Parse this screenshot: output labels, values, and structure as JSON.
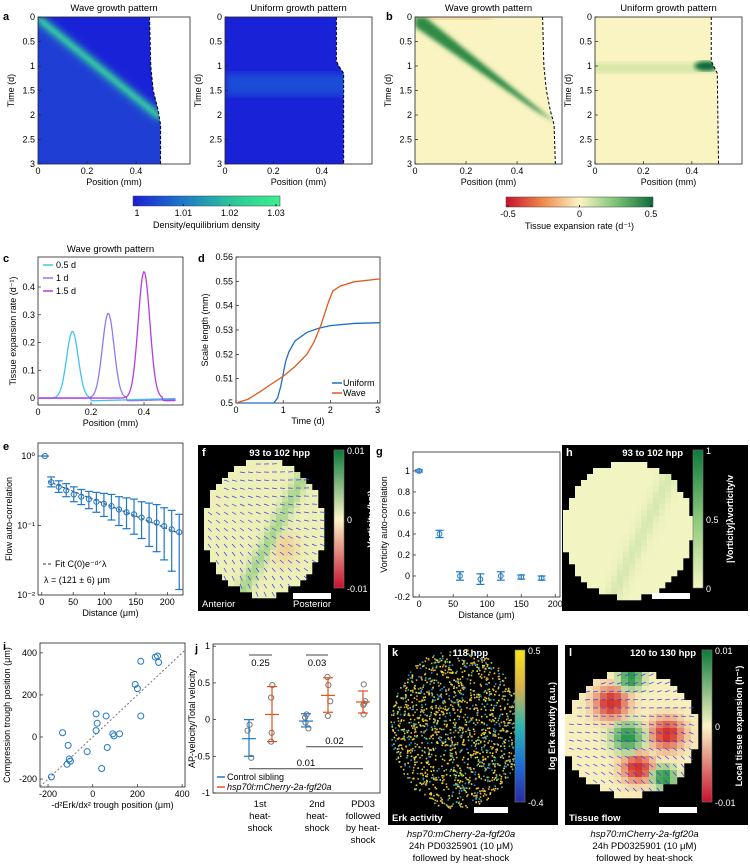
{
  "figure": {
    "panel_labels": [
      "a",
      "b",
      "c",
      "d",
      "e",
      "f",
      "g",
      "h",
      "i",
      "j",
      "k",
      "l"
    ]
  },
  "chart_data": [
    {
      "panel": "a",
      "type": "heatmap",
      "xlabel": "Position (mm)",
      "ylabel": "Time (d)",
      "xticks": [
        {
          "v": 0,
          "label": "0"
        },
        {
          "v": 0.2,
          "label": "0.2"
        },
        {
          "v": 0.4,
          "label": "0.4"
        }
      ],
      "yticks": [
        {
          "v": 0,
          "label": "0"
        },
        {
          "v": 0.5,
          "label": "0.5"
        },
        {
          "v": 1,
          "label": "1"
        },
        {
          "v": 1.5,
          "label": "1.5"
        },
        {
          "v": 2,
          "label": "2"
        },
        {
          "v": 2.5,
          "label": "2.5"
        },
        {
          "v": 3,
          "label": "3"
        }
      ],
      "subplots": [
        {
          "title": "Wave growth pattern",
          "pattern": "wave",
          "boundary": {
            "time": [
              0,
              1,
              1.5,
              1.9,
              2.2,
              3
            ],
            "position": [
              0.455,
              0.46,
              0.47,
              0.49,
              0.5,
              0.5
            ]
          }
        },
        {
          "title": "Uniform growth pattern",
          "pattern": "uniform",
          "boundary": {
            "time": [
              0,
              0.9,
              1,
              1.15,
              3
            ],
            "position": [
              0.46,
              0.46,
              0.47,
              0.49,
              0.49
            ]
          }
        }
      ],
      "colorbar": {
        "label": "Density/equilibrium density",
        "range": [
          1,
          1.03
        ],
        "ticks": [
          {
            "v": 1,
            "label": "1"
          },
          {
            "v": 1.01,
            "label": "1.01"
          },
          {
            "v": 1.02,
            "label": "1.02"
          },
          {
            "v": 1.03,
            "label": "1.03"
          }
        ],
        "colors": [
          "#1a1fd6",
          "#1d78c8",
          "#2cc59a",
          "#3df08c"
        ]
      }
    },
    {
      "panel": "b",
      "type": "heatmap",
      "xlabel": "Position (mm)",
      "ylabel": "Time (d)",
      "xticks": [
        {
          "v": 0,
          "label": "0"
        },
        {
          "v": 0.2,
          "label": "0.2"
        },
        {
          "v": 0.4,
          "label": "0.4"
        }
      ],
      "yticks": [
        {
          "v": 0,
          "label": "0"
        },
        {
          "v": 0.5,
          "label": "0.5"
        },
        {
          "v": 1,
          "label": "1"
        },
        {
          "v": 1.5,
          "label": "1.5"
        },
        {
          "v": 2,
          "label": "2"
        },
        {
          "v": 2.5,
          "label": "2.5"
        },
        {
          "v": 3,
          "label": "3"
        }
      ],
      "subplots": [
        {
          "title": "Wave growth pattern",
          "pattern": "wave",
          "boundary": {
            "time": [
              0,
              1,
              1.5,
              1.9,
              2.2,
              3
            ],
            "position": [
              0.5,
              0.505,
              0.515,
              0.53,
              0.545,
              0.55
            ]
          }
        },
        {
          "title": "Uniform growth pattern",
          "pattern": "uniform",
          "boundary": {
            "time": [
              0,
              0.9,
              1,
              1.15,
              3
            ],
            "position": [
              0.48,
              0.48,
              0.49,
              0.505,
              0.51
            ]
          }
        }
      ],
      "colorbar": {
        "label": "Tissue expansion rate (d⁻¹)",
        "range": [
          -0.5,
          0.5
        ],
        "ticks": [
          {
            "v": -0.5,
            "label": "-0.5"
          },
          {
            "v": 0,
            "label": "0"
          },
          {
            "v": 0.5,
            "label": "0.5"
          }
        ],
        "colors": [
          "#c8102e",
          "#f08a4b",
          "#fbf6c4",
          "#7cc276",
          "#0b6b3a"
        ]
      }
    },
    {
      "panel": "c",
      "type": "line",
      "title": "Wave growth pattern",
      "xlabel": "Position (mm)",
      "ylabel": "Tissue expansion rate (d⁻¹)",
      "xlim": [
        0,
        0.547
      ],
      "ylim": [
        -0.025,
        0.508
      ],
      "xticks": [
        {
          "v": 0,
          "label": "0"
        },
        {
          "v": 0.2,
          "label": "0.2"
        },
        {
          "v": 0.4,
          "label": "0.4"
        }
      ],
      "yticks": [
        {
          "v": 0,
          "label": "0"
        },
        {
          "v": 0.1,
          "label": "0.1"
        },
        {
          "v": 0.2,
          "label": "0.2"
        },
        {
          "v": 0.3,
          "label": "0.3"
        },
        {
          "v": 0.4,
          "label": "0.4"
        }
      ],
      "legend_position": "top-left",
      "series": [
        {
          "name": "0.5 d",
          "color": "#3fc6f0",
          "peak_position": 0.13,
          "peak_height": 0.24,
          "width": 0.022,
          "start": 0,
          "end": 0.52
        },
        {
          "name": "1    d",
          "color": "#8a7cf4",
          "peak_position": 0.265,
          "peak_height": 0.305,
          "width": 0.022,
          "start": 0,
          "end": 0.52
        },
        {
          "name": "1.5 d",
          "color": "#b43ce6",
          "peak_position": 0.4,
          "peak_height": 0.455,
          "width": 0.022,
          "start": 0,
          "end": 0.52
        }
      ]
    },
    {
      "panel": "d",
      "type": "line",
      "xlabel": "Time (d)",
      "ylabel": "Scale length (mm)",
      "xlim": [
        0,
        3.05
      ],
      "ylim": [
        0.5,
        0.56
      ],
      "xticks": [
        {
          "v": 0,
          "label": "0"
        },
        {
          "v": 1,
          "label": "1"
        },
        {
          "v": 2,
          "label": "2"
        },
        {
          "v": 3,
          "label": "3"
        }
      ],
      "yticks": [
        {
          "v": 0.5,
          "label": "0.5"
        },
        {
          "v": 0.51,
          "label": "0.51"
        },
        {
          "v": 0.52,
          "label": "0.52"
        },
        {
          "v": 0.53,
          "label": "0.53"
        },
        {
          "v": 0.54,
          "label": "0.54"
        },
        {
          "v": 0.55,
          "label": "0.55"
        },
        {
          "v": 0.56,
          "label": "0.56"
        }
      ],
      "legend_position": "bottom-right",
      "series": [
        {
          "name": "Uniform",
          "color": "#1f6fc0",
          "x": [
            0,
            0.8,
            0.88,
            0.95,
            1.0,
            1.05,
            1.12,
            1.25,
            1.5,
            1.75,
            2,
            2.5,
            3.05
          ],
          "y": [
            0.5,
            0.5,
            0.502,
            0.507,
            0.512,
            0.517,
            0.521,
            0.5255,
            0.529,
            0.5307,
            0.5318,
            0.5327,
            0.533
          ]
        },
        {
          "name": "Wave",
          "color": "#e05a1f",
          "x": [
            0,
            0.25,
            0.5,
            0.75,
            1,
            1.25,
            1.5,
            1.65,
            1.8,
            1.95,
            2.05,
            2.2,
            2.5,
            3.05
          ],
          "y": [
            0.5,
            0.5015,
            0.5045,
            0.5078,
            0.511,
            0.515,
            0.52,
            0.525,
            0.532,
            0.541,
            0.546,
            0.548,
            0.5498,
            0.551
          ]
        }
      ]
    },
    {
      "panel": "e",
      "type": "scatter",
      "xlabel": "Distance (μm)",
      "ylabel": "Flow auto-correlation",
      "yscale": "log",
      "xlim": [
        -6,
        225
      ],
      "ylim": [
        0.01,
        1.54
      ],
      "xticks": [
        {
          "v": 0,
          "label": "0"
        },
        {
          "v": 50,
          "label": "50"
        },
        {
          "v": 100,
          "label": "100"
        },
        {
          "v": 150,
          "label": "150"
        },
        {
          "v": 200,
          "label": "200"
        }
      ],
      "yticks": [
        {
          "v": 1,
          "label": "10⁰"
        },
        {
          "v": 0.1,
          "label": "10⁻¹"
        },
        {
          "v": 0.01,
          "label": "10⁻²"
        }
      ],
      "x": [
        5,
        15,
        27,
        39,
        51,
        63,
        75,
        87,
        99,
        111,
        123,
        135,
        147,
        159,
        171,
        183,
        195,
        207,
        219
      ],
      "y": [
        1.0,
        0.42,
        0.36,
        0.32,
        0.28,
        0.26,
        0.24,
        0.22,
        0.205,
        0.19,
        0.17,
        0.155,
        0.145,
        0.13,
        0.12,
        0.11,
        0.098,
        0.088,
        0.08
      ],
      "err_low": [
        1.0,
        0.36,
        0.3,
        0.26,
        0.22,
        0.2,
        0.175,
        0.155,
        0.135,
        0.12,
        0.1,
        0.09,
        0.075,
        0.065,
        0.05,
        0.042,
        0.032,
        0.022,
        0.012
      ],
      "err_high": [
        1.0,
        0.5,
        0.44,
        0.4,
        0.36,
        0.33,
        0.31,
        0.3,
        0.29,
        0.28,
        0.26,
        0.25,
        0.24,
        0.22,
        0.21,
        0.2,
        0.18,
        0.165,
        0.145
      ],
      "fit": {
        "label": "Fit C(0)e⁻ᵈᐟλ",
        "lambda": 121,
        "c0": 0.47,
        "range": [
          10,
          220
        ]
      },
      "annotation": "λ = (121 ± 6) μm",
      "color": "#1f78c8"
    },
    {
      "panel": "f",
      "type": "heatmap",
      "title": "93 to 102 hpp",
      "corner_left": "Anterior",
      "corner_right": "Posterior",
      "colorbar": {
        "label": "Vorticity (h⁻¹)",
        "ticks": [
          {
            "v": 0.01,
            "label": "0.01"
          },
          {
            "v": 0,
            "label": "0"
          },
          {
            "v": -0.01,
            "label": "-0.01"
          }
        ],
        "colors": [
          "#0b7a3a",
          "#fbf6c4",
          "#c8102e"
        ]
      }
    },
    {
      "panel": "g",
      "type": "scatter",
      "xlabel": "Distance (μm)",
      "ylabel": "Vorticity auto-correlation",
      "xlim": [
        -9,
        207
      ],
      "ylim": [
        -0.2,
        1.18
      ],
      "xticks": [
        {
          "v": 0,
          "label": "0"
        },
        {
          "v": 50,
          "label": "50"
        },
        {
          "v": 100,
          "label": "100"
        },
        {
          "v": 150,
          "label": "150"
        },
        {
          "v": 200,
          "label": "200"
        }
      ],
      "yticks": [
        {
          "v": -0.2,
          "label": "-0.2"
        },
        {
          "v": 0,
          "label": "0"
        },
        {
          "v": 0.2,
          "label": "0.2"
        },
        {
          "v": 0.4,
          "label": "0.4"
        },
        {
          "v": 0.6,
          "label": "0.6"
        },
        {
          "v": 0.8,
          "label": "0.8"
        },
        {
          "v": 1,
          "label": "1"
        }
      ],
      "x": [
        0,
        30,
        60,
        90,
        120,
        150,
        180
      ],
      "y": [
        1,
        0.4,
        0,
        -0.03,
        0,
        -0.01,
        -0.02
      ],
      "err": [
        0.01,
        0.035,
        0.04,
        0.05,
        0.04,
        0.02,
        0.02
      ],
      "color": "#1f78c8"
    },
    {
      "panel": "h",
      "type": "heatmap",
      "title": "93 to 102 hpp",
      "colorbar": {
        "label": "|Vorticity|λvorticity/v",
        "ticks": [
          {
            "v": 1,
            "label": "1"
          },
          {
            "v": 0.5,
            "label": "0.5"
          },
          {
            "v": 0,
            "label": "0"
          }
        ],
        "colors": [
          "#0b7a3a",
          "#8cc97a",
          "#f4f6c0"
        ]
      }
    },
    {
      "panel": "i",
      "type": "scatter",
      "xlabel": "-d²Erk/dx² trough position (μm)",
      "ylabel": "Compression trough position (μm)",
      "xlim": [
        -236,
        413
      ],
      "ylim": [
        -238,
        447
      ],
      "xticks": [
        {
          "v": -200,
          "label": "-200"
        },
        {
          "v": 0,
          "label": "0"
        },
        {
          "v": 200,
          "label": "200"
        },
        {
          "v": 400,
          "label": "400"
        }
      ],
      "yticks": [
        {
          "v": -200,
          "label": "-200"
        },
        {
          "v": 0,
          "label": "0"
        },
        {
          "v": 200,
          "label": "200"
        },
        {
          "v": 400,
          "label": "400"
        }
      ],
      "x": [
        -185,
        -135,
        -115,
        -110,
        -105,
        -100,
        -25,
        15,
        15,
        20,
        40,
        60,
        65,
        90,
        95,
        120,
        190,
        200,
        215,
        215,
        280,
        290,
        295
      ],
      "y": [
        -190,
        20,
        -130,
        -40,
        -105,
        -115,
        -70,
        30,
        110,
        65,
        -150,
        100,
        -50,
        15,
        5,
        15,
        250,
        230,
        100,
        360,
        380,
        385,
        355
      ],
      "reference_line": "y = x",
      "color": "#1f78c8"
    },
    {
      "panel": "j",
      "type": "scatter",
      "ylabel": "AP-velocity/Total velocity",
      "ylim": [
        -1,
        1.03
      ],
      "yticks": [
        {
          "v": -1,
          "label": "-1"
        },
        {
          "v": -0.5,
          "label": "-0.5"
        },
        {
          "v": 0,
          "label": "0"
        },
        {
          "v": 0.5,
          "label": "0.5"
        },
        {
          "v": 1,
          "label": "1"
        }
      ],
      "categories": [
        {
          "lines": [
            "1st",
            "heat-",
            "shock"
          ]
        },
        {
          "lines": [
            "2nd",
            "heat-",
            "shock"
          ]
        },
        {
          "lines": [
            "PD03",
            "followed",
            "by heat-",
            "shock"
          ]
        }
      ],
      "legend": [
        {
          "name": "Control sibling",
          "color": "#1f78c8",
          "italic": false
        },
        {
          "name": "hsp70l:mCherry-2a-fgf20a",
          "color": "#e0521c",
          "italic": true
        }
      ],
      "groups": [
        {
          "category": 0,
          "series": 0,
          "mean": -0.26,
          "low": -0.5,
          "high": 0.0,
          "points": [
            -0.07,
            -0.15,
            -0.52
          ]
        },
        {
          "category": 0,
          "series": 1,
          "mean": 0.07,
          "low": -0.3,
          "high": 0.45,
          "points": [
            0.47,
            0.3,
            -0.18,
            -0.3
          ]
        },
        {
          "category": 1,
          "series": 0,
          "mean": -0.02,
          "low": -0.1,
          "high": 0.08,
          "points": [
            0.07,
            0.03,
            -0.04,
            -0.12
          ]
        },
        {
          "category": 1,
          "series": 1,
          "mean": 0.33,
          "low": 0.1,
          "high": 0.57,
          "points": [
            0.58,
            0.47,
            0.25,
            0.05
          ]
        },
        {
          "category": 2,
          "series": 1,
          "mean": 0.24,
          "low": 0.09,
          "high": 0.39,
          "points": [
            0.48,
            0.25,
            0.22,
            0.2,
            0.07
          ]
        }
      ],
      "comparisons": [
        {
          "label": "0.25",
          "y": 0.88,
          "from": 0,
          "to": 1,
          "label_below": true
        },
        {
          "label": "0.03",
          "y": 0.88,
          "from": 2,
          "to": 3,
          "label_below": true
        },
        {
          "label": "0.02",
          "y": -0.37,
          "from": 2,
          "to": 4,
          "label_below": false
        },
        {
          "label": "0.01",
          "y": -0.67,
          "from": 0,
          "to": 4,
          "label_below": false
        }
      ]
    },
    {
      "panel": "k",
      "type": "heatmap",
      "title": "118 hpp",
      "corner_left": "Erk activity",
      "colorbar": {
        "label": "log Erk activity (a.u.)",
        "ticks": [
          {
            "v": 0.5,
            "label": "0.5"
          },
          {
            "v": -0.4,
            "label": "-0.4"
          }
        ],
        "colors": [
          "#f6e41c",
          "#d9b04a",
          "#2eb6b0",
          "#1d6fd8",
          "#2a2aa0"
        ]
      },
      "caption": [
        "hsp70:mCherry-2a-fgf20a",
        "24h PD0325901 (10 μM)",
        "followed by heat-shock"
      ]
    },
    {
      "panel": "l",
      "type": "heatmap",
      "title": "120 to 130 hpp",
      "corner_left": "Tissue flow",
      "colorbar": {
        "label": "Local tissue expansion (h⁻¹)",
        "ticks": [
          {
            "v": 0.01,
            "label": "0.01"
          },
          {
            "v": 0,
            "label": "0"
          },
          {
            "v": -0.01,
            "label": "-0.01"
          }
        ],
        "colors": [
          "#0b7a3a",
          "#fbf6c4",
          "#c8102e"
        ]
      },
      "caption": [
        "hsp70:mCherry-2a-fgf20a",
        "24h PD0325901 (10 μM)",
        "followed by heat-shock"
      ]
    }
  ]
}
